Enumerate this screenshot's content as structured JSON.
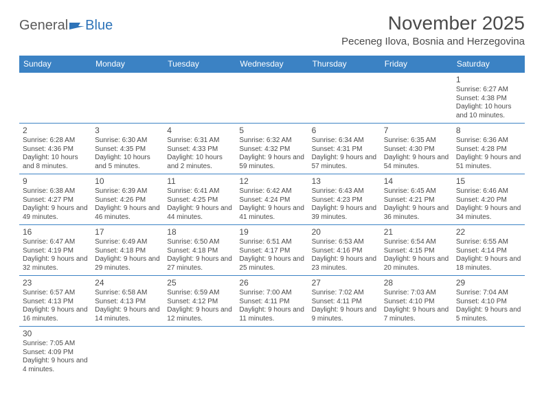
{
  "brand": {
    "general": "General",
    "blue": "Blue"
  },
  "title": "November 2025",
  "location": "Peceneg Ilova, Bosnia and Herzegovina",
  "colors": {
    "header_bg": "#3b82c4",
    "header_text": "#ffffff",
    "text": "#4a4a4a",
    "rule": "#3b82c4",
    "logo_gray": "#5a5a5a",
    "logo_blue": "#2d73b8",
    "background": "#ffffff"
  },
  "weekdays": [
    "Sunday",
    "Monday",
    "Tuesday",
    "Wednesday",
    "Thursday",
    "Friday",
    "Saturday"
  ],
  "weeks": [
    [
      null,
      null,
      null,
      null,
      null,
      null,
      {
        "n": "1",
        "sr": "6:27 AM",
        "ss": "4:38 PM",
        "dl": "10 hours and 10 minutes."
      }
    ],
    [
      {
        "n": "2",
        "sr": "6:28 AM",
        "ss": "4:36 PM",
        "dl": "10 hours and 8 minutes."
      },
      {
        "n": "3",
        "sr": "6:30 AM",
        "ss": "4:35 PM",
        "dl": "10 hours and 5 minutes."
      },
      {
        "n": "4",
        "sr": "6:31 AM",
        "ss": "4:33 PM",
        "dl": "10 hours and 2 minutes."
      },
      {
        "n": "5",
        "sr": "6:32 AM",
        "ss": "4:32 PM",
        "dl": "9 hours and 59 minutes."
      },
      {
        "n": "6",
        "sr": "6:34 AM",
        "ss": "4:31 PM",
        "dl": "9 hours and 57 minutes."
      },
      {
        "n": "7",
        "sr": "6:35 AM",
        "ss": "4:30 PM",
        "dl": "9 hours and 54 minutes."
      },
      {
        "n": "8",
        "sr": "6:36 AM",
        "ss": "4:28 PM",
        "dl": "9 hours and 51 minutes."
      }
    ],
    [
      {
        "n": "9",
        "sr": "6:38 AM",
        "ss": "4:27 PM",
        "dl": "9 hours and 49 minutes."
      },
      {
        "n": "10",
        "sr": "6:39 AM",
        "ss": "4:26 PM",
        "dl": "9 hours and 46 minutes."
      },
      {
        "n": "11",
        "sr": "6:41 AM",
        "ss": "4:25 PM",
        "dl": "9 hours and 44 minutes."
      },
      {
        "n": "12",
        "sr": "6:42 AM",
        "ss": "4:24 PM",
        "dl": "9 hours and 41 minutes."
      },
      {
        "n": "13",
        "sr": "6:43 AM",
        "ss": "4:23 PM",
        "dl": "9 hours and 39 minutes."
      },
      {
        "n": "14",
        "sr": "6:45 AM",
        "ss": "4:21 PM",
        "dl": "9 hours and 36 minutes."
      },
      {
        "n": "15",
        "sr": "6:46 AM",
        "ss": "4:20 PM",
        "dl": "9 hours and 34 minutes."
      }
    ],
    [
      {
        "n": "16",
        "sr": "6:47 AM",
        "ss": "4:19 PM",
        "dl": "9 hours and 32 minutes."
      },
      {
        "n": "17",
        "sr": "6:49 AM",
        "ss": "4:18 PM",
        "dl": "9 hours and 29 minutes."
      },
      {
        "n": "18",
        "sr": "6:50 AM",
        "ss": "4:18 PM",
        "dl": "9 hours and 27 minutes."
      },
      {
        "n": "19",
        "sr": "6:51 AM",
        "ss": "4:17 PM",
        "dl": "9 hours and 25 minutes."
      },
      {
        "n": "20",
        "sr": "6:53 AM",
        "ss": "4:16 PM",
        "dl": "9 hours and 23 minutes."
      },
      {
        "n": "21",
        "sr": "6:54 AM",
        "ss": "4:15 PM",
        "dl": "9 hours and 20 minutes."
      },
      {
        "n": "22",
        "sr": "6:55 AM",
        "ss": "4:14 PM",
        "dl": "9 hours and 18 minutes."
      }
    ],
    [
      {
        "n": "23",
        "sr": "6:57 AM",
        "ss": "4:13 PM",
        "dl": "9 hours and 16 minutes."
      },
      {
        "n": "24",
        "sr": "6:58 AM",
        "ss": "4:13 PM",
        "dl": "9 hours and 14 minutes."
      },
      {
        "n": "25",
        "sr": "6:59 AM",
        "ss": "4:12 PM",
        "dl": "9 hours and 12 minutes."
      },
      {
        "n": "26",
        "sr": "7:00 AM",
        "ss": "4:11 PM",
        "dl": "9 hours and 11 minutes."
      },
      {
        "n": "27",
        "sr": "7:02 AM",
        "ss": "4:11 PM",
        "dl": "9 hours and 9 minutes."
      },
      {
        "n": "28",
        "sr": "7:03 AM",
        "ss": "4:10 PM",
        "dl": "9 hours and 7 minutes."
      },
      {
        "n": "29",
        "sr": "7:04 AM",
        "ss": "4:10 PM",
        "dl": "9 hours and 5 minutes."
      }
    ],
    [
      {
        "n": "30",
        "sr": "7:05 AM",
        "ss": "4:09 PM",
        "dl": "9 hours and 4 minutes."
      },
      null,
      null,
      null,
      null,
      null,
      null
    ]
  ],
  "labels": {
    "sunrise": "Sunrise:",
    "sunset": "Sunset:",
    "daylight": "Daylight:"
  }
}
